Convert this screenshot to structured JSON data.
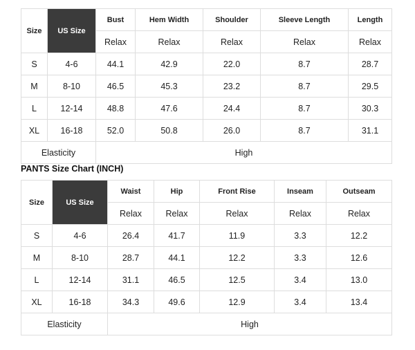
{
  "tops": {
    "header": {
      "size": "Size",
      "us_size": "US Size",
      "measures": [
        "Bust",
        "Hem Width",
        "Shoulder",
        "Sleeve Length",
        "Length"
      ],
      "fit": [
        "Relax",
        "Relax",
        "Relax",
        "Relax",
        "Relax"
      ]
    },
    "rows": [
      [
        "S",
        "4-6",
        "44.1",
        "42.9",
        "22.0",
        "8.7",
        "28.7"
      ],
      [
        "M",
        "8-10",
        "46.5",
        "45.3",
        "23.2",
        "8.7",
        "29.5"
      ],
      [
        "L",
        "12-14",
        "48.8",
        "47.6",
        "24.4",
        "8.7",
        "30.3"
      ],
      [
        "XL",
        "16-18",
        "52.0",
        "50.8",
        "26.0",
        "8.7",
        "31.1"
      ]
    ],
    "footer": [
      "Elasticity",
      "High"
    ]
  },
  "pants_title": "PANTS Size Chart (INCH)",
  "pants": {
    "header": {
      "size": "Size",
      "us_size": "US Size",
      "measures": [
        "Waist",
        "Hip",
        "Front Rise",
        "Inseam",
        "Outseam"
      ],
      "fit": [
        "Relax",
        "Relax",
        "Relax",
        "Relax",
        "Relax"
      ]
    },
    "rows": [
      [
        "S",
        "4-6",
        "26.4",
        "41.7",
        "11.9",
        "3.3",
        "12.2"
      ],
      [
        "M",
        "8-10",
        "28.7",
        "44.1",
        "12.2",
        "3.3",
        "12.6"
      ],
      [
        "L",
        "12-14",
        "31.1",
        "46.5",
        "12.5",
        "3.4",
        "13.0"
      ],
      [
        "XL",
        "16-18",
        "34.3",
        "49.6",
        "12.9",
        "3.4",
        "13.4"
      ]
    ],
    "footer": [
      "Elasticity",
      "High"
    ]
  }
}
